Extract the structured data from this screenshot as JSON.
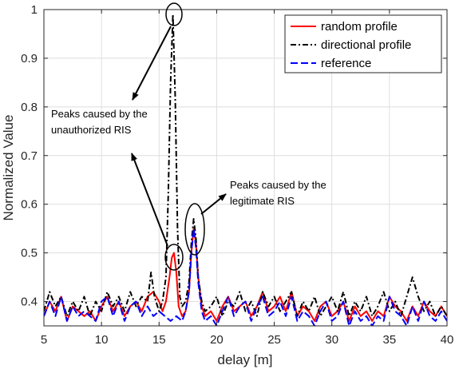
{
  "chart_data": {
    "type": "line",
    "xlabel": "delay [m]",
    "ylabel": "Normalized Value",
    "xlim": [
      5,
      40
    ],
    "ylim": [
      0.35,
      1.0
    ],
    "xticks": [
      5,
      10,
      15,
      20,
      25,
      30,
      35,
      40
    ],
    "yticks": [
      0.4,
      0.5,
      0.6,
      0.7,
      0.8,
      0.9,
      1.0
    ],
    "ytick_labels": [
      "0.4",
      "0.5",
      "0.6",
      "0.7",
      "0.8",
      "0.9",
      "1"
    ],
    "grid": true,
    "legend_position": "top-right",
    "series": [
      {
        "name": "random profile",
        "color": "#ff0000",
        "dash": "solid",
        "x": [
          5,
          5.5,
          6,
          6.5,
          7,
          7.5,
          8,
          8.5,
          9,
          9.5,
          10,
          10.5,
          11,
          11.5,
          12,
          12.5,
          13,
          13.5,
          14,
          14.5,
          15,
          15.3,
          15.6,
          15.9,
          16.1,
          16.3,
          16.5,
          16.7,
          17,
          17.3,
          17.6,
          17.8,
          18,
          18.2,
          18.4,
          18.7,
          19,
          19.5,
          20,
          20.5,
          21,
          21.5,
          22,
          22.5,
          23,
          23.5,
          24,
          24.5,
          25,
          25.5,
          26,
          26.5,
          27,
          27.5,
          28,
          28.5,
          29,
          29.5,
          30,
          30.5,
          31,
          31.5,
          32,
          32.5,
          33,
          33.5,
          34,
          34.5,
          35,
          35.5,
          36,
          36.5,
          37,
          37.5,
          38,
          38.5,
          39,
          39.5,
          40
        ],
        "y": [
          0.37,
          0.4,
          0.38,
          0.41,
          0.36,
          0.39,
          0.38,
          0.37,
          0.38,
          0.36,
          0.39,
          0.41,
          0.38,
          0.4,
          0.37,
          0.39,
          0.4,
          0.38,
          0.41,
          0.42,
          0.4,
          0.38,
          0.4,
          0.45,
          0.49,
          0.5,
          0.46,
          0.39,
          0.37,
          0.38,
          0.42,
          0.5,
          0.55,
          0.52,
          0.45,
          0.39,
          0.37,
          0.38,
          0.36,
          0.39,
          0.41,
          0.38,
          0.39,
          0.4,
          0.37,
          0.39,
          0.42,
          0.38,
          0.39,
          0.41,
          0.38,
          0.42,
          0.37,
          0.39,
          0.38,
          0.36,
          0.39,
          0.4,
          0.37,
          0.38,
          0.4,
          0.36,
          0.39,
          0.37,
          0.38,
          0.36,
          0.38,
          0.37,
          0.41,
          0.39,
          0.38,
          0.36,
          0.39,
          0.37,
          0.4,
          0.38,
          0.37,
          0.39,
          0.37
        ]
      },
      {
        "name": "directional profile",
        "color": "#000000",
        "dash": "dashdot",
        "x": [
          5,
          5.5,
          6,
          6.5,
          7,
          7.5,
          8,
          8.5,
          9,
          9.5,
          10,
          10.5,
          11,
          11.5,
          12,
          12.5,
          13,
          13.5,
          14,
          14.3,
          14.6,
          15,
          15.3,
          15.6,
          15.8,
          16,
          16.2,
          16.4,
          16.6,
          16.8,
          17,
          17.3,
          17.6,
          17.8,
          18,
          18.2,
          18.4,
          18.7,
          19,
          19.5,
          20,
          20.5,
          21,
          21.5,
          22,
          22.5,
          23,
          23.5,
          24,
          24.5,
          25,
          25.5,
          26,
          26.5,
          27,
          27.5,
          28,
          28.5,
          29,
          29.5,
          30,
          30.5,
          31,
          31.5,
          32,
          32.5,
          33,
          33.5,
          34,
          34.5,
          35,
          35.5,
          36,
          36.5,
          37,
          37.5,
          38,
          38.5,
          39,
          39.5,
          40
        ],
        "y": [
          0.38,
          0.42,
          0.39,
          0.41,
          0.37,
          0.4,
          0.38,
          0.41,
          0.37,
          0.4,
          0.38,
          0.42,
          0.39,
          0.41,
          0.38,
          0.42,
          0.39,
          0.41,
          0.4,
          0.46,
          0.41,
          0.38,
          0.4,
          0.45,
          0.62,
          0.85,
          0.99,
          0.82,
          0.55,
          0.41,
          0.39,
          0.4,
          0.44,
          0.52,
          0.57,
          0.53,
          0.45,
          0.4,
          0.38,
          0.39,
          0.41,
          0.37,
          0.4,
          0.39,
          0.42,
          0.38,
          0.4,
          0.37,
          0.42,
          0.39,
          0.41,
          0.38,
          0.4,
          0.42,
          0.37,
          0.4,
          0.38,
          0.41,
          0.37,
          0.39,
          0.41,
          0.38,
          0.42,
          0.37,
          0.4,
          0.38,
          0.41,
          0.37,
          0.39,
          0.42,
          0.38,
          0.4,
          0.37,
          0.41,
          0.45,
          0.41,
          0.38,
          0.4,
          0.37,
          0.39,
          0.37
        ]
      },
      {
        "name": "reference",
        "color": "#0000ff",
        "dash": "dashed",
        "x": [
          5,
          5.5,
          6,
          6.5,
          7,
          7.5,
          8,
          8.5,
          9,
          9.5,
          10,
          10.5,
          11,
          11.5,
          12,
          12.5,
          13,
          13.5,
          14,
          14.5,
          15,
          15.5,
          16,
          16.5,
          17,
          17.3,
          17.6,
          17.8,
          18,
          18.2,
          18.4,
          18.7,
          19,
          19.5,
          20,
          20.5,
          21,
          21.5,
          22,
          22.5,
          23,
          23.5,
          24,
          24.5,
          25,
          25.5,
          26,
          26.5,
          27,
          27.5,
          28,
          28.5,
          29,
          29.5,
          30,
          30.5,
          31,
          31.5,
          32,
          32.5,
          33,
          33.5,
          34,
          34.5,
          35,
          35.5,
          36,
          36.5,
          37,
          37.5,
          38,
          38.5,
          39,
          39.5,
          40
        ],
        "y": [
          0.37,
          0.4,
          0.37,
          0.41,
          0.36,
          0.39,
          0.37,
          0.38,
          0.37,
          0.36,
          0.4,
          0.41,
          0.37,
          0.4,
          0.36,
          0.39,
          0.4,
          0.37,
          0.39,
          0.37,
          0.38,
          0.37,
          0.36,
          0.37,
          0.36,
          0.38,
          0.42,
          0.5,
          0.55,
          0.51,
          0.44,
          0.38,
          0.36,
          0.37,
          0.35,
          0.38,
          0.41,
          0.37,
          0.39,
          0.4,
          0.36,
          0.39,
          0.41,
          0.37,
          0.38,
          0.4,
          0.37,
          0.41,
          0.36,
          0.38,
          0.37,
          0.35,
          0.38,
          0.4,
          0.36,
          0.37,
          0.4,
          0.35,
          0.38,
          0.36,
          0.37,
          0.35,
          0.37,
          0.36,
          0.41,
          0.38,
          0.37,
          0.35,
          0.39,
          0.36,
          0.4,
          0.37,
          0.36,
          0.38,
          0.36
        ]
      }
    ],
    "annotations": [
      {
        "id": "unauthorized",
        "lines": [
          "Peaks caused by the",
          "unauthorized RIS"
        ]
      },
      {
        "id": "legitimate",
        "lines": [
          "Peaks caused by the",
          "legitimate RIS"
        ]
      }
    ]
  }
}
